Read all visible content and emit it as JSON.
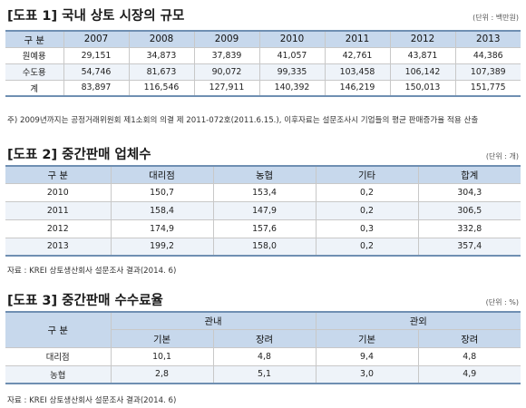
{
  "t1": {
    "title": "[도표 1] 국내 상토 시장의 규모",
    "unit": "(단위 : 백만원)",
    "head": "구 분",
    "years": [
      "2007",
      "2008",
      "2009",
      "2010",
      "2011",
      "2012",
      "2013"
    ],
    "rows": [
      {
        "label": "원예용",
        "vals": [
          "29,151",
          "34,873",
          "37,839",
          "41,057",
          "42,761",
          "43,871",
          "44,386"
        ]
      },
      {
        "label": "수도용",
        "vals": [
          "54,746",
          "81,673",
          "90,072",
          "99,335",
          "103,458",
          "106,142",
          "107,389"
        ]
      },
      {
        "label": "계",
        "vals": [
          "83,897",
          "116,546",
          "127,911",
          "140,392",
          "146,219",
          "150,013",
          "151,775"
        ]
      }
    ],
    "note": "주) 2009년까지는 공정거래위원회 제1소회의 의결 제 2011-072호(2011.6.15.), 이후자료는 설문조사시 기업들의 평균 판매증가율 적용 산출"
  },
  "t2": {
    "title": "[도표 2] 중간판매 업체수",
    "unit": "(단위 : 개)",
    "head": [
      "구 분",
      "대리점",
      "농협",
      "기타",
      "합계"
    ],
    "rows": [
      {
        "year": "2010",
        "vals": [
          "150,7",
          "153,4",
          "0,2",
          "304,3"
        ]
      },
      {
        "year": "2011",
        "vals": [
          "158,4",
          "147,9",
          "0,2",
          "306,5"
        ]
      },
      {
        "year": "2012",
        "vals": [
          "174,9",
          "157,6",
          "0,3",
          "332,8"
        ]
      },
      {
        "year": "2013",
        "vals": [
          "199,2",
          "158,0",
          "0,2",
          "357,4"
        ]
      }
    ],
    "note": "자료 : KREI 상토생산회사 설문조사 결과(2014. 6)"
  },
  "t3": {
    "title": "[도표 3] 중간판매 수수료율",
    "unit": "(단위 : %)",
    "head": "구 분",
    "groups": [
      "관내",
      "관외"
    ],
    "sub": [
      "기본",
      "장려",
      "기본",
      "장려"
    ],
    "rows": [
      {
        "label": "대리점",
        "vals": [
          "10,1",
          "4,8",
          "9,4",
          "4,8"
        ]
      },
      {
        "label": "농협",
        "vals": [
          "2,8",
          "5,1",
          "3,0",
          "4,9"
        ]
      }
    ],
    "note": "자료 : KREI 상토생산회사 설문조사 결과(2014. 6)"
  }
}
